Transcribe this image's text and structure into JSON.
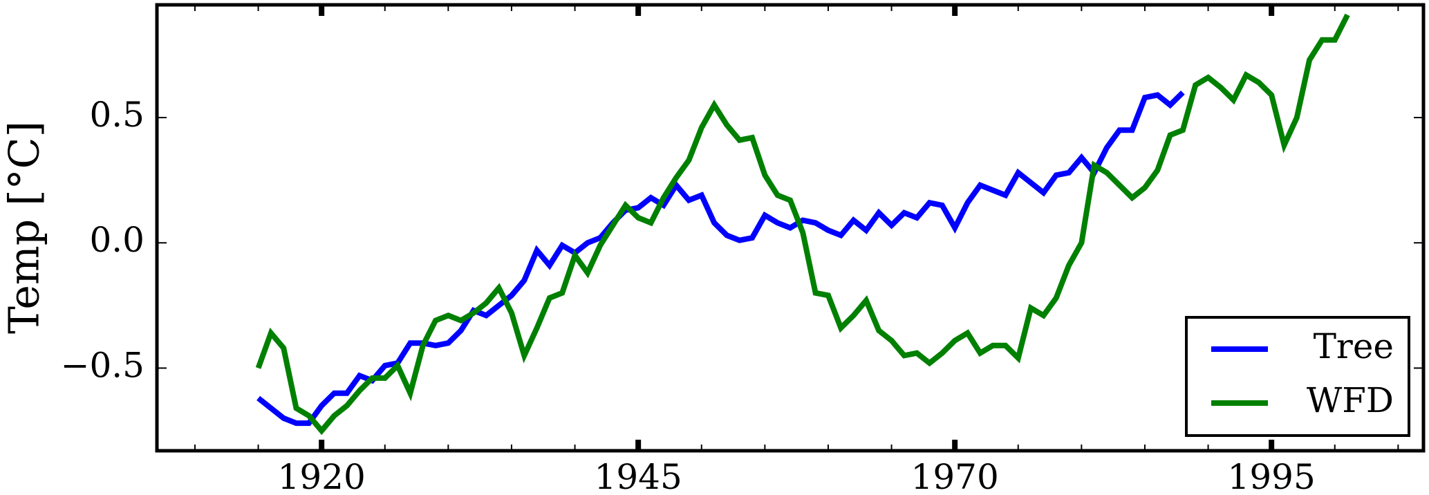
{
  "chart_data": {
    "type": "line",
    "y_label": "Temp [°C]",
    "x": [
      1915,
      1916,
      1917,
      1918,
      1919,
      1920,
      1921,
      1922,
      1923,
      1924,
      1925,
      1926,
      1927,
      1928,
      1929,
      1930,
      1931,
      1932,
      1933,
      1934,
      1935,
      1936,
      1937,
      1938,
      1939,
      1940,
      1941,
      1942,
      1943,
      1944,
      1945,
      1946,
      1947,
      1948,
      1949,
      1950,
      1951,
      1952,
      1953,
      1954,
      1955,
      1956,
      1957,
      1958,
      1959,
      1960,
      1961,
      1962,
      1963,
      1964,
      1965,
      1966,
      1967,
      1968,
      1969,
      1970,
      1971,
      1972,
      1973,
      1974,
      1975,
      1976,
      1977,
      1978,
      1979,
      1980,
      1981,
      1982,
      1983,
      1984,
      1985,
      1986,
      1987,
      1988,
      1989,
      1990,
      1991,
      1992,
      1993,
      1994,
      1995,
      1996,
      1997,
      1998,
      1999,
      2000,
      2001
    ],
    "series": [
      {
        "name": "Tree",
        "color": "#0000ff",
        "values": [
          -0.62,
          -0.66,
          -0.7,
          -0.72,
          -0.72,
          -0.65,
          -0.6,
          -0.6,
          -0.53,
          -0.55,
          -0.49,
          -0.48,
          -0.4,
          -0.4,
          -0.41,
          -0.4,
          -0.35,
          -0.27,
          -0.29,
          -0.25,
          -0.21,
          -0.15,
          -0.03,
          -0.09,
          -0.01,
          -0.04,
          0.0,
          0.02,
          0.08,
          0.13,
          0.14,
          0.18,
          0.15,
          0.23,
          0.17,
          0.19,
          0.08,
          0.03,
          0.01,
          0.02,
          0.11,
          0.08,
          0.06,
          0.09,
          0.08,
          0.05,
          0.03,
          0.09,
          0.05,
          0.12,
          0.07,
          0.12,
          0.1,
          0.16,
          0.15,
          0.06,
          0.16,
          0.23,
          0.21,
          0.19,
          0.28,
          0.24,
          0.2,
          0.27,
          0.28,
          0.34,
          0.28,
          0.38,
          0.45,
          0.45,
          0.58,
          0.59,
          0.55,
          0.6,
          null,
          null,
          null,
          null,
          null,
          null,
          null,
          null,
          null,
          null,
          null,
          null,
          null
        ]
      },
      {
        "name": "WFD",
        "color": "#008000",
        "values": [
          -0.5,
          -0.36,
          -0.42,
          -0.66,
          -0.69,
          -0.75,
          -0.69,
          -0.65,
          -0.59,
          -0.54,
          -0.54,
          -0.49,
          -0.6,
          -0.41,
          -0.31,
          -0.29,
          -0.31,
          -0.28,
          -0.24,
          -0.18,
          -0.28,
          -0.45,
          -0.34,
          -0.22,
          -0.2,
          -0.05,
          -0.12,
          -0.01,
          0.07,
          0.15,
          0.1,
          0.08,
          0.18,
          0.26,
          0.33,
          0.46,
          0.55,
          0.47,
          0.41,
          0.42,
          0.27,
          0.19,
          0.17,
          0.04,
          -0.2,
          -0.21,
          -0.34,
          -0.29,
          -0.23,
          -0.35,
          -0.39,
          -0.45,
          -0.44,
          -0.48,
          -0.44,
          -0.39,
          -0.36,
          -0.44,
          -0.41,
          -0.41,
          -0.46,
          -0.26,
          -0.29,
          -0.22,
          -0.09,
          0.0,
          0.31,
          0.28,
          0.23,
          0.18,
          0.22,
          0.29,
          0.43,
          0.45,
          0.63,
          0.66,
          0.62,
          0.57,
          0.67,
          0.64,
          0.59,
          0.39,
          0.5,
          0.73,
          0.81,
          0.81,
          0.91
        ]
      }
    ],
    "xlim": [
      1907,
      2007
    ],
    "xticks": [
      1920,
      1945,
      1970,
      1995
    ],
    "xminor_ticks": [
      1910,
      1915,
      1925,
      1930,
      1935,
      1940,
      1950,
      1955,
      1960,
      1965,
      1975,
      1980,
      1985,
      1990,
      2000,
      2005
    ],
    "ylim": [
      -0.83,
      0.95
    ],
    "yticks": [
      {
        "value": -0.5,
        "label": "−0.5"
      },
      {
        "value": 0,
        "label": "0.0"
      },
      0.5
    ],
    "legend": "lower right"
  }
}
